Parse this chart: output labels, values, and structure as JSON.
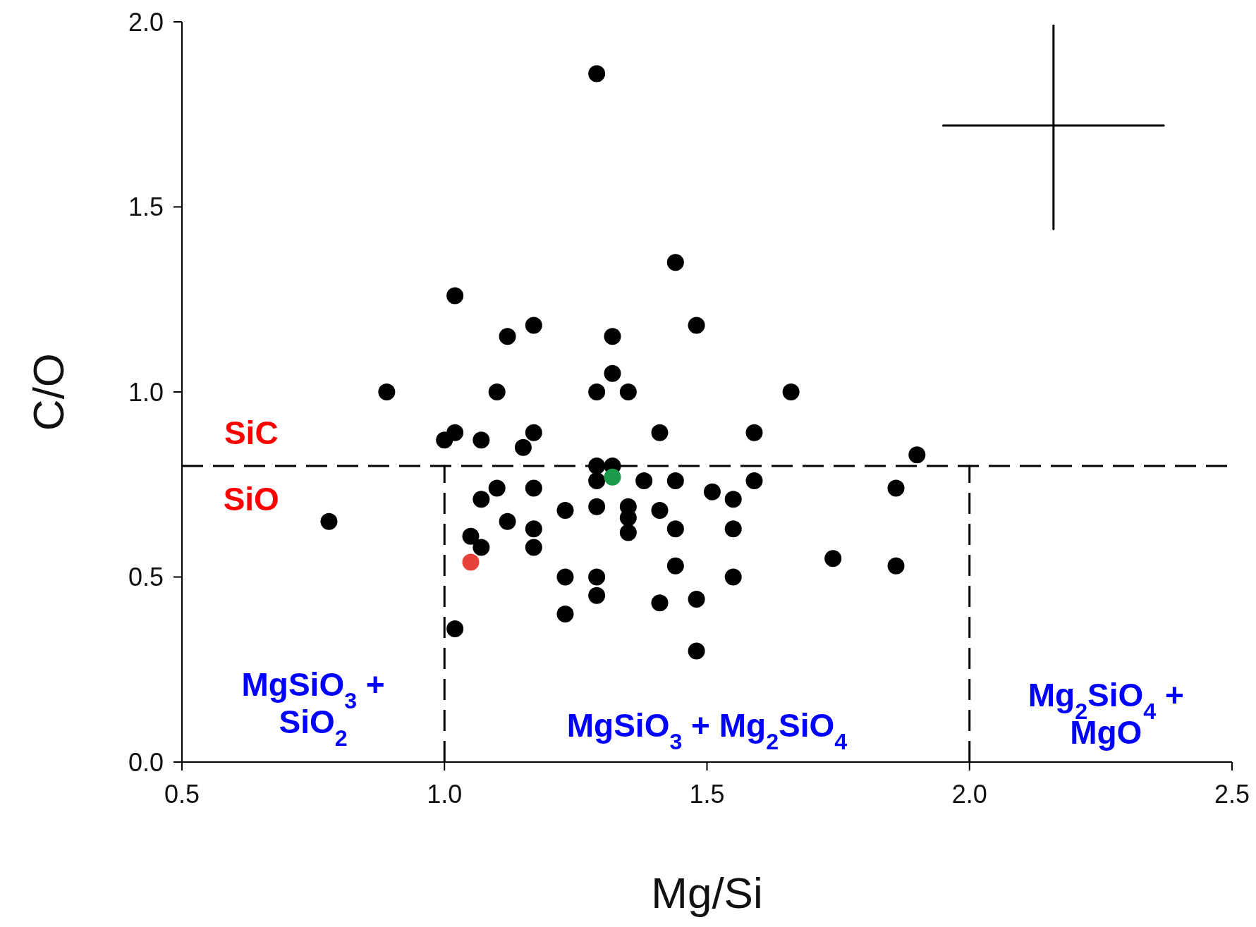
{
  "chart_data": {
    "type": "scatter",
    "xlabel": "Mg/Si",
    "ylabel": "C/O",
    "xlim": [
      0.5,
      2.5
    ],
    "ylim": [
      0,
      2
    ],
    "xticks": [
      0.5,
      {
        "value": 1,
        "label": "1.0"
      },
      1.5,
      {
        "value": 2,
        "label": "2.0"
      },
      2.5
    ],
    "yticks": [
      {
        "value": 0,
        "label": "0.0"
      },
      0.5,
      {
        "value": 1,
        "label": "1.0"
      },
      1.5,
      {
        "value": 2,
        "label": "2.0"
      }
    ],
    "marker": "circle",
    "series": [
      {
        "color": "#000000",
        "x": [
          1.29,
          1.44,
          1.02,
          1.12,
          1.17,
          1.48,
          1.32,
          1.32,
          0.89,
          1.1,
          1.29,
          1.35,
          1.66,
          1.0,
          1.02,
          1.07,
          1.15,
          1.17,
          1.41,
          1.59,
          1.9,
          1.29,
          1.32,
          1.29,
          1.38,
          1.44,
          1.59,
          1.1,
          1.17,
          1.51,
          1.55,
          1.07,
          1.86,
          1.29,
          1.35,
          1.23,
          1.41,
          1.35,
          0.78,
          1.12,
          1.17,
          1.44,
          1.55,
          1.35,
          1.05,
          1.07,
          1.17,
          1.74,
          1.44,
          1.86,
          1.23,
          1.29,
          1.55,
          1.29,
          1.41,
          1.48,
          1.23,
          1.02,
          1.48
        ],
        "values": [
          1.86,
          1.35,
          1.26,
          1.15,
          1.18,
          1.18,
          1.15,
          1.05,
          1.0,
          1.0,
          1.0,
          1.0,
          1.0,
          0.87,
          0.89,
          0.87,
          0.85,
          0.89,
          0.89,
          0.89,
          0.83,
          0.8,
          0.8,
          0.76,
          0.76,
          0.76,
          0.76,
          0.74,
          0.74,
          0.73,
          0.71,
          0.71,
          0.74,
          0.69,
          0.69,
          0.68,
          0.68,
          0.66,
          0.65,
          0.65,
          0.63,
          0.63,
          0.63,
          0.62,
          0.61,
          0.58,
          0.58,
          0.55,
          0.53,
          0.53,
          0.5,
          0.5,
          0.5,
          0.45,
          0.43,
          0.44,
          0.4,
          0.36,
          0.3
        ]
      },
      {
        "color": "#e8413c",
        "x": [
          1.05
        ],
        "values": [
          0.54
        ]
      },
      {
        "color": "#1a9a4a",
        "x": [
          1.32
        ],
        "values": [
          0.77
        ]
      },
      {
        "type": "line",
        "color": "#000000",
        "x": [
          1.95,
          2.37
        ],
        "values": [
          1.72,
          1.72
        ],
        "line_style": "solid",
        "marker": "none"
      },
      {
        "type": "line",
        "color": "#000000",
        "x": [
          2.16,
          2.16
        ],
        "values": [
          1.44,
          1.99
        ],
        "line_style": "solid",
        "marker": "none"
      },
      {
        "type": "line",
        "color": "#000000",
        "x": [
          1,
          1
        ],
        "values": [
          0,
          0.8
        ],
        "line_style": "dashed",
        "marker": "none"
      },
      {
        "type": "line",
        "color": "#000000",
        "x": [
          2,
          2
        ],
        "values": [
          0,
          0.8
        ],
        "line_style": "dashed",
        "marker": "none"
      }
    ],
    "ref_lines": [
      {
        "axis": "y",
        "value": 0.8,
        "color": "#000000",
        "line_style": "dashed"
      }
    ],
    "annotations": [
      "SiC",
      "SiO",
      "MgSiO$_{3}$ +\nSiO$_{2}$",
      "MgSiO$_{3}$ + Mg$_{2}$SiO$_{4}$",
      "Mg$_{2}$SiO$_{4}$ +\nMgO"
    ]
  }
}
